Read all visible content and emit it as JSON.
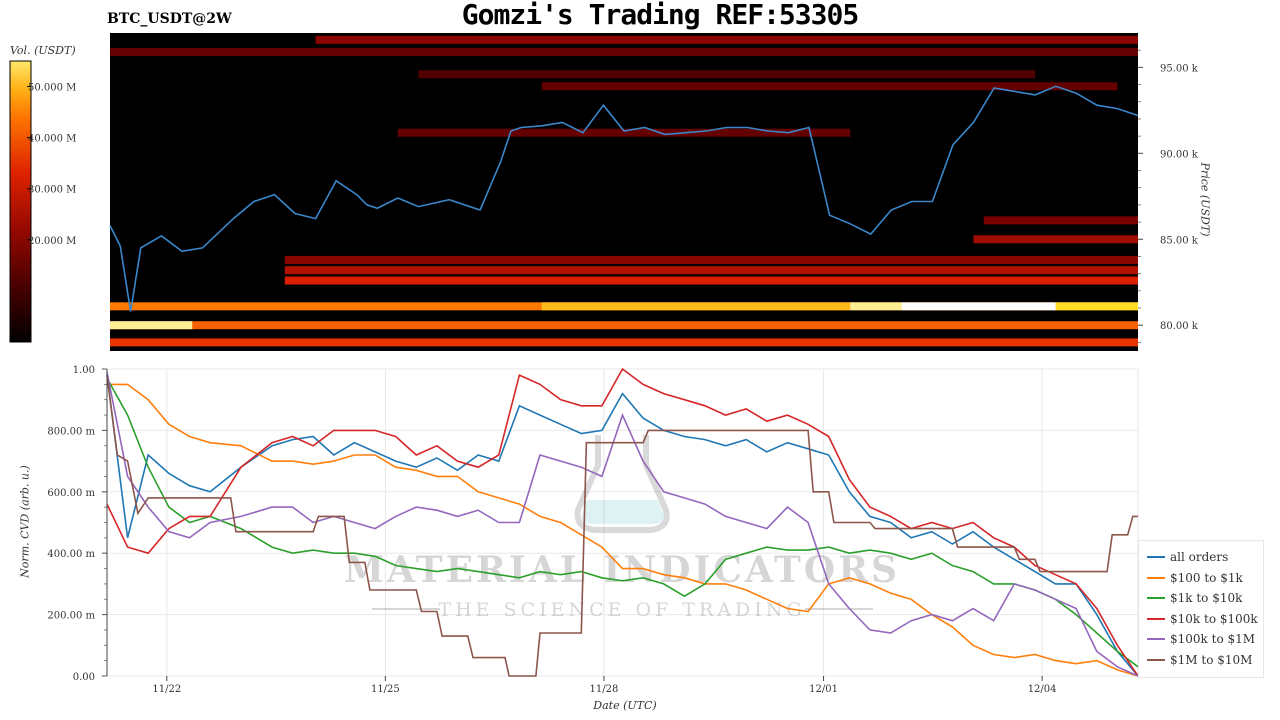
{
  "header": {
    "title": "Gomzi's Trading REF:53305",
    "symbol": "BTC_USDT@2W"
  },
  "watermark": {
    "text": "MATERIAL INDICATORS",
    "tagline": "THE SCIENCE OF TRADING"
  },
  "colors": {
    "price_line": "#3a87c9",
    "all_orders": "#1f77b4",
    "usd100_1k": "#ff7f0e",
    "usd1k_10k": "#2ca02c",
    "usd10k_100k": "#d62728",
    "usd100k_1m": "#9467bd",
    "usd1m_10m": "#8c564b"
  },
  "chart_data": [
    {
      "type": "heatmap",
      "title": "BTC_USDT@2W",
      "ylabel": "Price (USDT)",
      "colorbar_label": "Vol. (USDT)",
      "colorbar_ticks": [
        "50.000 M",
        "40.000 M",
        "30.000 M",
        "20.000 M"
      ],
      "colorbar_range": [
        0,
        55000000
      ],
      "ylim": [
        78500,
        97000
      ],
      "y_ticks": [
        {
          "value": 95000,
          "label": "95.00 k"
        },
        {
          "value": 90000,
          "label": "90.00 k"
        },
        {
          "value": 85000,
          "label": "85.00 k"
        },
        {
          "value": 80000,
          "label": "80.00 k"
        }
      ],
      "liquidity_bands": [
        {
          "price": 96600,
          "start": 0.2,
          "end": 1.0,
          "intensity": 0.35
        },
        {
          "price": 95900,
          "start": 0.0,
          "end": 1.0,
          "intensity": 0.25
        },
        {
          "price": 94600,
          "start": 0.3,
          "end": 0.9,
          "intensity": 0.2
        },
        {
          "price": 93900,
          "start": 0.42,
          "end": 0.98,
          "intensity": 0.25
        },
        {
          "price": 91200,
          "start": 0.28,
          "end": 0.72,
          "intensity": 0.25
        },
        {
          "price": 86100,
          "start": 0.85,
          "end": 1.0,
          "intensity": 0.3
        },
        {
          "price": 85000,
          "start": 0.84,
          "end": 1.0,
          "intensity": 0.4
        },
        {
          "price": 83800,
          "start": 0.17,
          "end": 1.0,
          "intensity": 0.35
        },
        {
          "price": 83200,
          "start": 0.17,
          "end": 1.0,
          "intensity": 0.45
        },
        {
          "price": 82600,
          "start": 0.17,
          "end": 1.0,
          "intensity": 0.55
        },
        {
          "price": 81100,
          "start": 0.0,
          "end": 1.0,
          "intensity": 0.75,
          "hot": [
            [
              0.42,
              0.72,
              0.85
            ],
            [
              0.72,
              0.77,
              0.95
            ],
            [
              0.77,
              0.92,
              1.0
            ],
            [
              0.92,
              1.0,
              0.9
            ]
          ]
        },
        {
          "price": 80000,
          "start": 0.0,
          "end": 1.0,
          "intensity": 0.7,
          "hot": [
            [
              0.0,
              0.08,
              0.95
            ]
          ]
        },
        {
          "price": 79000,
          "start": 0.0,
          "end": 1.0,
          "intensity": 0.6
        }
      ],
      "series": [
        {
          "name": "price",
          "x": [
            0.0,
            0.01,
            0.02,
            0.03,
            0.05,
            0.07,
            0.09,
            0.12,
            0.14,
            0.16,
            0.18,
            0.2,
            0.22,
            0.24,
            0.25,
            0.26,
            0.28,
            0.3,
            0.33,
            0.36,
            0.38,
            0.39,
            0.4,
            0.42,
            0.44,
            0.46,
            0.48,
            0.5,
            0.52,
            0.54,
            0.56,
            0.58,
            0.6,
            0.62,
            0.64,
            0.66,
            0.68,
            0.7,
            0.72,
            0.74,
            0.76,
            0.78,
            0.8,
            0.82,
            0.84,
            0.86,
            0.88,
            0.9,
            0.92,
            0.94,
            0.96,
            0.98,
            1.0
          ],
          "values": [
            85800,
            84600,
            80800,
            84500,
            85200,
            84300,
            84500,
            86200,
            87200,
            87600,
            86500,
            86200,
            88400,
            87600,
            87000,
            86800,
            87400,
            86900,
            87300,
            86700,
            89500,
            91300,
            91500,
            91600,
            91800,
            91200,
            92800,
            91300,
            91500,
            91100,
            91200,
            91300,
            91500,
            91500,
            91300,
            91200,
            91500,
            86400,
            85900,
            85300,
            86700,
            87200,
            87200,
            90500,
            91800,
            93800,
            93600,
            93400,
            93900,
            93500,
            92800,
            92600,
            92200
          ]
        }
      ]
    },
    {
      "type": "line",
      "xlabel": "Date (UTC)",
      "ylabel": "Norm. CVD (arb. u.)",
      "ylim": [
        0,
        1
      ],
      "x_ticks": [
        "11/22",
        "11/25",
        "11/28",
        "12/01",
        "12/04"
      ],
      "x_tick_values": [
        0.058,
        0.27,
        0.482,
        0.695,
        0.907
      ],
      "y_ticks": [
        {
          "value": 1.0,
          "label": "1.00"
        },
        {
          "value": 0.8,
          "label": "800.00 m"
        },
        {
          "value": 0.6,
          "label": "600.00 m"
        },
        {
          "value": 0.4,
          "label": "400.00 m"
        },
        {
          "value": 0.2,
          "label": "200.00 m"
        },
        {
          "value": 0.0,
          "label": "0.00"
        }
      ],
      "grid": true,
      "legend_position": "bottom-right",
      "series": [
        {
          "name": "all orders",
          "color_key": "all_orders",
          "x": [
            0.0,
            0.02,
            0.04,
            0.06,
            0.08,
            0.1,
            0.13,
            0.16,
            0.18,
            0.2,
            0.22,
            0.24,
            0.26,
            0.28,
            0.3,
            0.32,
            0.34,
            0.36,
            0.38,
            0.4,
            0.42,
            0.44,
            0.46,
            0.48,
            0.5,
            0.52,
            0.54,
            0.56,
            0.58,
            0.6,
            0.62,
            0.64,
            0.66,
            0.68,
            0.7,
            0.72,
            0.74,
            0.76,
            0.78,
            0.8,
            0.82,
            0.84,
            0.86,
            0.88,
            0.9,
            0.92,
            0.94,
            0.96,
            0.98,
            1.0
          ],
          "values": [
            0.98,
            0.45,
            0.72,
            0.66,
            0.62,
            0.6,
            0.68,
            0.75,
            0.77,
            0.78,
            0.72,
            0.76,
            0.73,
            0.7,
            0.68,
            0.71,
            0.67,
            0.72,
            0.7,
            0.88,
            0.85,
            0.82,
            0.79,
            0.8,
            0.92,
            0.84,
            0.8,
            0.78,
            0.77,
            0.75,
            0.77,
            0.73,
            0.76,
            0.74,
            0.72,
            0.6,
            0.52,
            0.5,
            0.45,
            0.47,
            0.43,
            0.47,
            0.42,
            0.38,
            0.34,
            0.3,
            0.3,
            0.2,
            0.08,
            0.0
          ]
        },
        {
          "name": "$100 to $1k",
          "color_key": "usd100_1k",
          "x": [
            0.0,
            0.02,
            0.04,
            0.06,
            0.08,
            0.1,
            0.13,
            0.16,
            0.18,
            0.2,
            0.22,
            0.24,
            0.26,
            0.28,
            0.3,
            0.32,
            0.34,
            0.36,
            0.38,
            0.4,
            0.42,
            0.44,
            0.46,
            0.48,
            0.5,
            0.52,
            0.54,
            0.56,
            0.58,
            0.6,
            0.62,
            0.64,
            0.66,
            0.68,
            0.7,
            0.72,
            0.74,
            0.76,
            0.78,
            0.8,
            0.82,
            0.84,
            0.86,
            0.88,
            0.9,
            0.92,
            0.94,
            0.96,
            0.98,
            1.0
          ],
          "values": [
            0.95,
            0.95,
            0.9,
            0.82,
            0.78,
            0.76,
            0.75,
            0.7,
            0.7,
            0.69,
            0.7,
            0.72,
            0.72,
            0.68,
            0.67,
            0.65,
            0.65,
            0.6,
            0.58,
            0.56,
            0.52,
            0.5,
            0.46,
            0.42,
            0.35,
            0.35,
            0.33,
            0.32,
            0.3,
            0.3,
            0.28,
            0.25,
            0.22,
            0.21,
            0.3,
            0.32,
            0.3,
            0.27,
            0.25,
            0.2,
            0.16,
            0.1,
            0.07,
            0.06,
            0.07,
            0.05,
            0.04,
            0.05,
            0.02,
            0.0
          ]
        },
        {
          "name": "$1k to $10k",
          "color_key": "usd1k_10k",
          "x": [
            0.0,
            0.02,
            0.04,
            0.06,
            0.08,
            0.1,
            0.13,
            0.16,
            0.18,
            0.2,
            0.22,
            0.24,
            0.26,
            0.28,
            0.3,
            0.32,
            0.34,
            0.36,
            0.38,
            0.4,
            0.42,
            0.44,
            0.46,
            0.48,
            0.5,
            0.52,
            0.54,
            0.56,
            0.58,
            0.6,
            0.62,
            0.64,
            0.66,
            0.68,
            0.7,
            0.72,
            0.74,
            0.76,
            0.78,
            0.8,
            0.82,
            0.84,
            0.86,
            0.88,
            0.9,
            0.92,
            0.94,
            0.96,
            0.98,
            1.0
          ],
          "values": [
            0.97,
            0.85,
            0.68,
            0.55,
            0.5,
            0.52,
            0.48,
            0.42,
            0.4,
            0.41,
            0.4,
            0.4,
            0.39,
            0.36,
            0.35,
            0.34,
            0.35,
            0.34,
            0.33,
            0.32,
            0.34,
            0.33,
            0.34,
            0.32,
            0.31,
            0.32,
            0.3,
            0.26,
            0.3,
            0.38,
            0.4,
            0.42,
            0.41,
            0.41,
            0.42,
            0.4,
            0.41,
            0.4,
            0.38,
            0.4,
            0.36,
            0.34,
            0.3,
            0.3,
            0.28,
            0.25,
            0.2,
            0.14,
            0.08,
            0.03
          ]
        },
        {
          "name": "$10k to $100k",
          "color_key": "usd10k_100k",
          "x": [
            0.0,
            0.02,
            0.04,
            0.06,
            0.08,
            0.1,
            0.13,
            0.16,
            0.18,
            0.2,
            0.22,
            0.24,
            0.26,
            0.28,
            0.3,
            0.32,
            0.34,
            0.36,
            0.38,
            0.4,
            0.42,
            0.44,
            0.46,
            0.48,
            0.5,
            0.52,
            0.54,
            0.56,
            0.58,
            0.6,
            0.62,
            0.64,
            0.66,
            0.68,
            0.7,
            0.72,
            0.74,
            0.76,
            0.78,
            0.8,
            0.82,
            0.84,
            0.86,
            0.88,
            0.9,
            0.92,
            0.94,
            0.96,
            0.98,
            1.0
          ],
          "values": [
            0.56,
            0.42,
            0.4,
            0.48,
            0.52,
            0.52,
            0.68,
            0.76,
            0.78,
            0.75,
            0.8,
            0.8,
            0.8,
            0.78,
            0.72,
            0.75,
            0.7,
            0.68,
            0.72,
            0.98,
            0.95,
            0.9,
            0.88,
            0.88,
            1.0,
            0.95,
            0.92,
            0.9,
            0.88,
            0.85,
            0.87,
            0.83,
            0.85,
            0.82,
            0.78,
            0.64,
            0.55,
            0.52,
            0.48,
            0.5,
            0.48,
            0.5,
            0.45,
            0.42,
            0.36,
            0.33,
            0.3,
            0.22,
            0.1,
            0.0
          ]
        },
        {
          "name": "$100k to $1M",
          "color_key": "usd100k_1m",
          "x": [
            0.0,
            0.02,
            0.04,
            0.06,
            0.08,
            0.1,
            0.13,
            0.16,
            0.18,
            0.2,
            0.22,
            0.24,
            0.26,
            0.28,
            0.3,
            0.32,
            0.34,
            0.36,
            0.38,
            0.4,
            0.42,
            0.44,
            0.46,
            0.48,
            0.5,
            0.52,
            0.54,
            0.56,
            0.58,
            0.6,
            0.62,
            0.64,
            0.66,
            0.68,
            0.7,
            0.72,
            0.74,
            0.76,
            0.78,
            0.8,
            0.82,
            0.84,
            0.86,
            0.88,
            0.9,
            0.92,
            0.94,
            0.96,
            0.98,
            1.0
          ],
          "values": [
            0.99,
            0.65,
            0.55,
            0.47,
            0.45,
            0.5,
            0.52,
            0.55,
            0.55,
            0.5,
            0.52,
            0.5,
            0.48,
            0.52,
            0.55,
            0.54,
            0.52,
            0.54,
            0.5,
            0.5,
            0.72,
            0.7,
            0.68,
            0.65,
            0.85,
            0.7,
            0.6,
            0.58,
            0.56,
            0.52,
            0.5,
            0.48,
            0.55,
            0.5,
            0.3,
            0.22,
            0.15,
            0.14,
            0.18,
            0.2,
            0.18,
            0.22,
            0.18,
            0.3,
            0.28,
            0.25,
            0.22,
            0.08,
            0.03,
            0.0
          ]
        },
        {
          "name": "$1M to $10M",
          "color_key": "usd1m_10m",
          "x": [
            0.0,
            0.01,
            0.02,
            0.03,
            0.04,
            0.12,
            0.125,
            0.2,
            0.205,
            0.23,
            0.235,
            0.25,
            0.255,
            0.3,
            0.305,
            0.32,
            0.325,
            0.35,
            0.355,
            0.386,
            0.39,
            0.416,
            0.42,
            0.46,
            0.465,
            0.52,
            0.525,
            0.68,
            0.685,
            0.7,
            0.705,
            0.74,
            0.745,
            0.82,
            0.825,
            0.88,
            0.885,
            0.9,
            0.905,
            0.97,
            0.975,
            0.99,
            0.995,
            1.0
          ],
          "values": [
            0.98,
            0.72,
            0.7,
            0.53,
            0.58,
            0.58,
            0.47,
            0.47,
            0.52,
            0.52,
            0.37,
            0.37,
            0.28,
            0.28,
            0.21,
            0.21,
            0.13,
            0.13,
            0.06,
            0.06,
            0.0,
            0.0,
            0.14,
            0.14,
            0.76,
            0.76,
            0.8,
            0.8,
            0.6,
            0.6,
            0.5,
            0.5,
            0.48,
            0.48,
            0.42,
            0.42,
            0.38,
            0.38,
            0.34,
            0.34,
            0.46,
            0.46,
            0.52,
            0.52
          ]
        }
      ]
    }
  ]
}
